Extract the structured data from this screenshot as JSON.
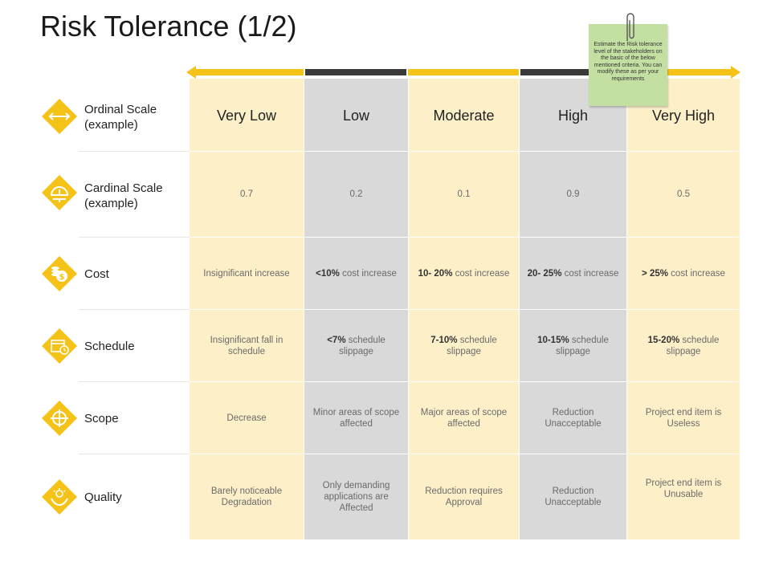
{
  "title": "Risk Tolerance (1/2)",
  "note": "Estimate the Risk tolerance level of the stakeholders on the basic of the below mentioned criteria. You can modify these as per your requirements",
  "colors": {
    "accent": "#f5c218",
    "light_col": "#fdf0c9",
    "grey_col": "#d9d9d9",
    "dark_seg": "#3a3a3a",
    "note_bg": "#c3e0a2"
  },
  "columns": [
    "Very Low",
    "Low",
    "Moderate",
    "High",
    "Very High"
  ],
  "rows": [
    {
      "label": "Ordinal Scale (example)",
      "icon": "double-arrow-icon"
    },
    {
      "label": "Cardinal Scale (example)",
      "icon": "speedometer-icon",
      "cells": [
        "0.7",
        "0.2",
        "0.1",
        "0.9",
        "0.5"
      ]
    },
    {
      "label": "Cost",
      "icon": "coins-dollar-icon",
      "cells": [
        {
          "bold": "",
          "text": "Insignificant increase"
        },
        {
          "bold": "<10%",
          "text": " cost increase"
        },
        {
          "bold": "10- 20%",
          "text": " cost increase"
        },
        {
          "bold": "20- 25%",
          "text": " cost increase"
        },
        {
          "bold": "> 25%",
          "text": " cost increase"
        }
      ]
    },
    {
      "label": "Schedule",
      "icon": "calendar-clock-icon",
      "cells": [
        {
          "bold": "",
          "text": "Insignificant fall in schedule"
        },
        {
          "bold": "<7%",
          "text": " schedule slippage"
        },
        {
          "bold": "7-10%",
          "text": " schedule slippage"
        },
        {
          "bold": "10-15%",
          "text": " schedule slippage"
        },
        {
          "bold": "15-20%",
          "text": " schedule slippage"
        }
      ]
    },
    {
      "label": "Scope",
      "icon": "crosshair-icon",
      "cells": [
        "Decrease",
        "Minor areas of scope affected",
        "Major areas of scope affected",
        "Reduction Unacceptable",
        "Project end item is Useless"
      ]
    },
    {
      "label": "Quality",
      "icon": "quality-hands-icon",
      "cells": [
        "Barely noticeable Degradation",
        "Only demanding applications are Affected",
        "Reduction requires Approval",
        "Reduction Unacceptable",
        "Project end item is Unusable"
      ]
    }
  ]
}
